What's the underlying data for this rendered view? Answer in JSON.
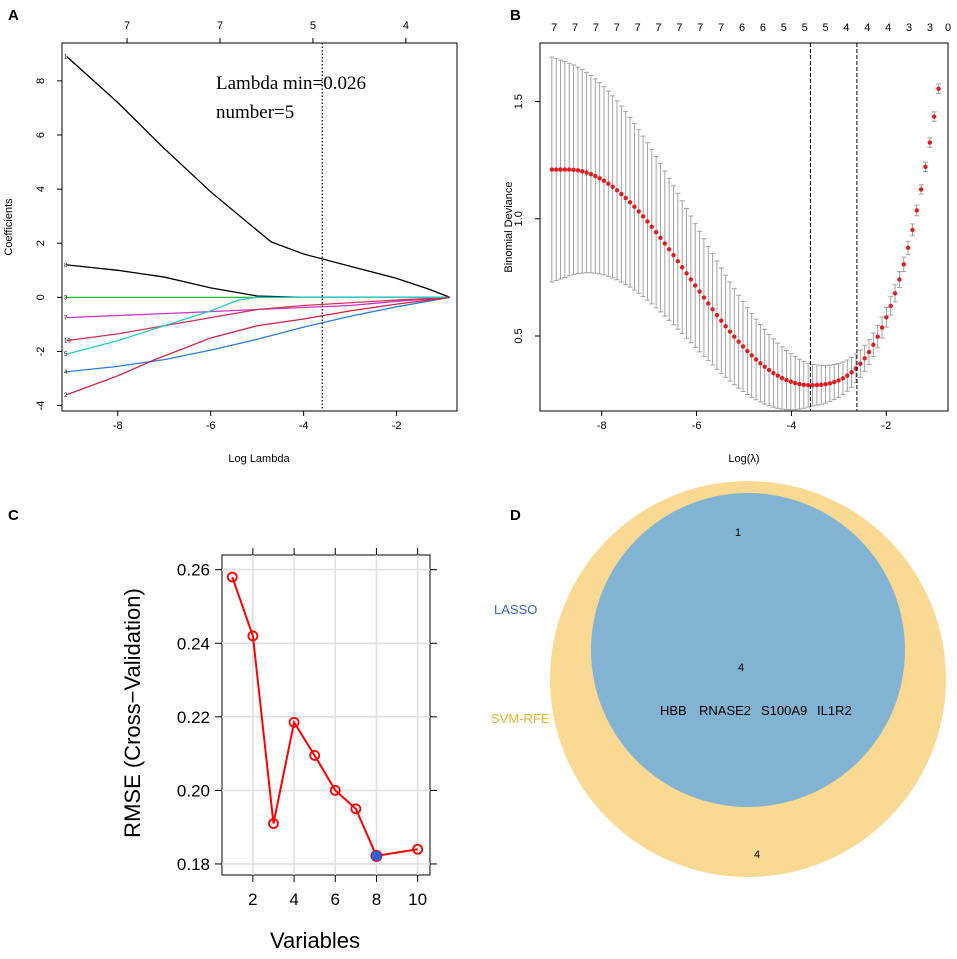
{
  "panels": {
    "a": {
      "letter": "A"
    },
    "b": {
      "letter": "B"
    },
    "c": {
      "letter": "C"
    },
    "d": {
      "letter": "D"
    }
  },
  "chart_data": [
    {
      "id": "A",
      "type": "line",
      "title": "",
      "xlabel": "Log Lambda",
      "ylabel": "Coefficients",
      "xlim": [
        -9.2,
        -0.7
      ],
      "ylim": [
        -4.2,
        9.4
      ],
      "x_ticks": [
        -8,
        -6,
        -4,
        -2
      ],
      "y_ticks": [
        -4,
        -2,
        0,
        2,
        4,
        6,
        8
      ],
      "top_ticks": [
        {
          "x": -7.8,
          "label": "7"
        },
        {
          "x": -5.8,
          "label": "7"
        },
        {
          "x": -3.8,
          "label": "5"
        },
        {
          "x": -1.8,
          "label": "4"
        }
      ],
      "vline": -3.6,
      "annotation": [
        "Lambda min=0.026",
        "number=5"
      ],
      "series": [
        {
          "name": "1",
          "color": "#000000",
          "x": [
            -9.1,
            -8,
            -7,
            -6,
            -5.3,
            -4.7,
            -4,
            -3,
            -2,
            -1.3,
            -0.85
          ],
          "y": [
            8.9,
            7.2,
            5.5,
            3.9,
            2.9,
            2.05,
            1.6,
            1.15,
            0.7,
            0.3,
            0
          ]
        },
        {
          "name": "8",
          "color": "#000000",
          "x": [
            -9.1,
            -8,
            -7,
            -6,
            -5,
            -4,
            -3,
            -2,
            -0.85
          ],
          "y": [
            1.2,
            1.0,
            0.75,
            0.35,
            0.05,
            0,
            0,
            0,
            0
          ]
        },
        {
          "name": "3",
          "color": "#2ab52a",
          "x": [
            -9.1,
            -0.85
          ],
          "y": [
            0,
            0
          ]
        },
        {
          "name": "7",
          "color": "#cc33cc",
          "x": [
            -9.1,
            -7,
            -5,
            -3,
            -2,
            -0.85
          ],
          "y": [
            -0.75,
            -0.6,
            -0.45,
            -0.3,
            -0.15,
            0
          ]
        },
        {
          "name": "10",
          "color": "#cc3355",
          "x": [
            -9.1,
            -8,
            -7,
            -6,
            -5,
            -4,
            -3,
            -2,
            -0.85
          ],
          "y": [
            -1.6,
            -1.35,
            -1.05,
            -0.75,
            -0.45,
            -0.3,
            -0.2,
            -0.1,
            0
          ]
        },
        {
          "name": "5",
          "color": "#22cccc",
          "x": [
            -9.1,
            -8,
            -7,
            -6,
            -5.4,
            -5,
            -3,
            -0.85
          ],
          "y": [
            -2.1,
            -1.6,
            -1.05,
            -0.5,
            -0.1,
            0,
            0,
            0
          ]
        },
        {
          "name": "4",
          "color": "#2a7fd4",
          "x": [
            -9.1,
            -8,
            -7,
            -6,
            -5,
            -4,
            -3,
            -2,
            -0.85
          ],
          "y": [
            -2.75,
            -2.55,
            -2.3,
            -1.95,
            -1.55,
            -1.1,
            -0.7,
            -0.35,
            0
          ]
        },
        {
          "name": "2",
          "color": "#cc2244",
          "x": [
            -9.1,
            -8,
            -7.2,
            -6,
            -5,
            -4,
            -3,
            -2,
            -0.85
          ],
          "y": [
            -3.6,
            -2.9,
            -2.3,
            -1.5,
            -1.05,
            -0.8,
            -0.5,
            -0.25,
            0
          ]
        }
      ]
    },
    {
      "id": "B",
      "type": "scatter",
      "title": "",
      "xlabel": "Log(λ)",
      "ylabel": "Binomial Deviance",
      "xlim": [
        -9.3,
        -0.7
      ],
      "ylim": [
        0.18,
        1.75
      ],
      "x_ticks": [
        -8,
        -6,
        -4,
        -2
      ],
      "y_ticks": [
        0.5,
        1.0,
        1.5
      ],
      "top_ticks": [
        {
          "x": -9.0,
          "label": "7"
        },
        {
          "x": -8.56,
          "label": "7"
        },
        {
          "x": -8.12,
          "label": "7"
        },
        {
          "x": -7.68,
          "label": "7"
        },
        {
          "x": -7.24,
          "label": "7"
        },
        {
          "x": -6.8,
          "label": "7"
        },
        {
          "x": -6.36,
          "label": "7"
        },
        {
          "x": -5.92,
          "label": "7"
        },
        {
          "x": -5.48,
          "label": "7"
        },
        {
          "x": -5.04,
          "label": "6"
        },
        {
          "x": -4.6,
          "label": "6"
        },
        {
          "x": -4.16,
          "label": "5"
        },
        {
          "x": -3.72,
          "label": "5"
        },
        {
          "x": -3.28,
          "label": "5"
        },
        {
          "x": -2.84,
          "label": "4"
        },
        {
          "x": -2.4,
          "label": "4"
        },
        {
          "x": -1.96,
          "label": "4"
        },
        {
          "x": -1.52,
          "label": "3"
        },
        {
          "x": -1.08,
          "label": "3"
        },
        {
          "x": -0.7,
          "label": "0"
        }
      ],
      "vlines": [
        -3.6,
        -2.62
      ],
      "points": {
        "x_start": -9.05,
        "x_end": -0.9,
        "count": 90,
        "error_halfwidth": 0.48,
        "min_error_halfwidth": 0.09,
        "x_min": -3.6,
        "y_min": 0.29,
        "y_start": 1.21
      },
      "color": "#e41a1c"
    },
    {
      "id": "C",
      "type": "line",
      "title": "",
      "xlabel": "Variables",
      "ylabel": "RMSE (Cross−Validation)",
      "xlim": [
        0.5,
        10.6
      ],
      "ylim": [
        0.177,
        0.264
      ],
      "x_ticks": [
        2,
        4,
        6,
        8,
        10
      ],
      "y_ticks": [
        0.18,
        0.2,
        0.22,
        0.24,
        0.26
      ],
      "y_tick_labels": [
        "0.18",
        "0.20",
        "0.22",
        "0.24",
        "0.26"
      ],
      "x": [
        1,
        2,
        3,
        4,
        5,
        6,
        7,
        8,
        10
      ],
      "values": [
        0.258,
        0.242,
        0.191,
        0.2185,
        0.2095,
        0.2,
        0.195,
        0.1822,
        0.184
      ],
      "highlight_x": 8,
      "color": "#ff0000"
    },
    {
      "id": "D",
      "type": "venn",
      "sets": [
        {
          "name": "LASSO",
          "color": "#3399ff",
          "label_color": "#3366cc",
          "only": "1"
        },
        {
          "name": "SVM-RFE",
          "color": "#f7c04a",
          "label_color": "#f0b030",
          "only": "4"
        }
      ],
      "intersection_count": "4",
      "intersection_genes": [
        "HBB",
        "RNASE2",
        "S100A9",
        "IL1R2"
      ]
    }
  ]
}
